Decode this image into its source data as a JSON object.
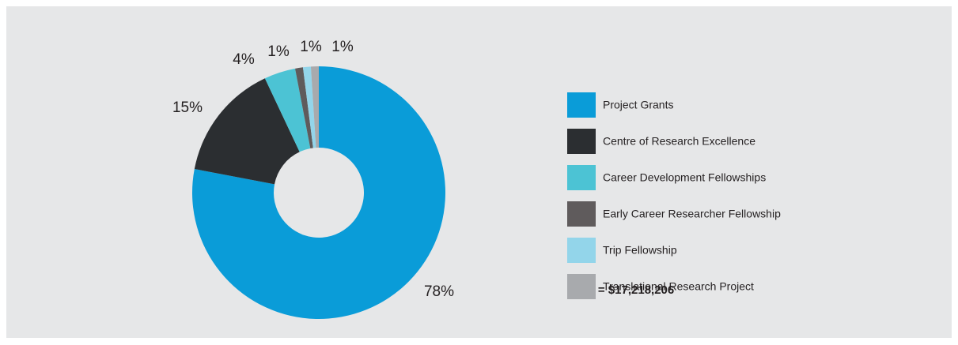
{
  "chart_data": {
    "type": "donut",
    "categories": [
      "Project Grants",
      "Centre of Research Excellence",
      "Career Development Fellowships",
      "Early Career Researcher Fellowship",
      "Trip Fellowship",
      "Translational Research Project"
    ],
    "values": [
      78,
      15,
      4,
      1,
      1,
      1
    ],
    "value_labels": [
      "78%",
      "15%",
      "4%",
      "1%",
      "1%",
      "1%"
    ],
    "colors": [
      "#0a9cd8",
      "#2b2e31",
      "#4cc3d4",
      "#5f5b5c",
      "#93d5ea",
      "#a8aaad"
    ],
    "total": "Total = $17,218,206"
  }
}
